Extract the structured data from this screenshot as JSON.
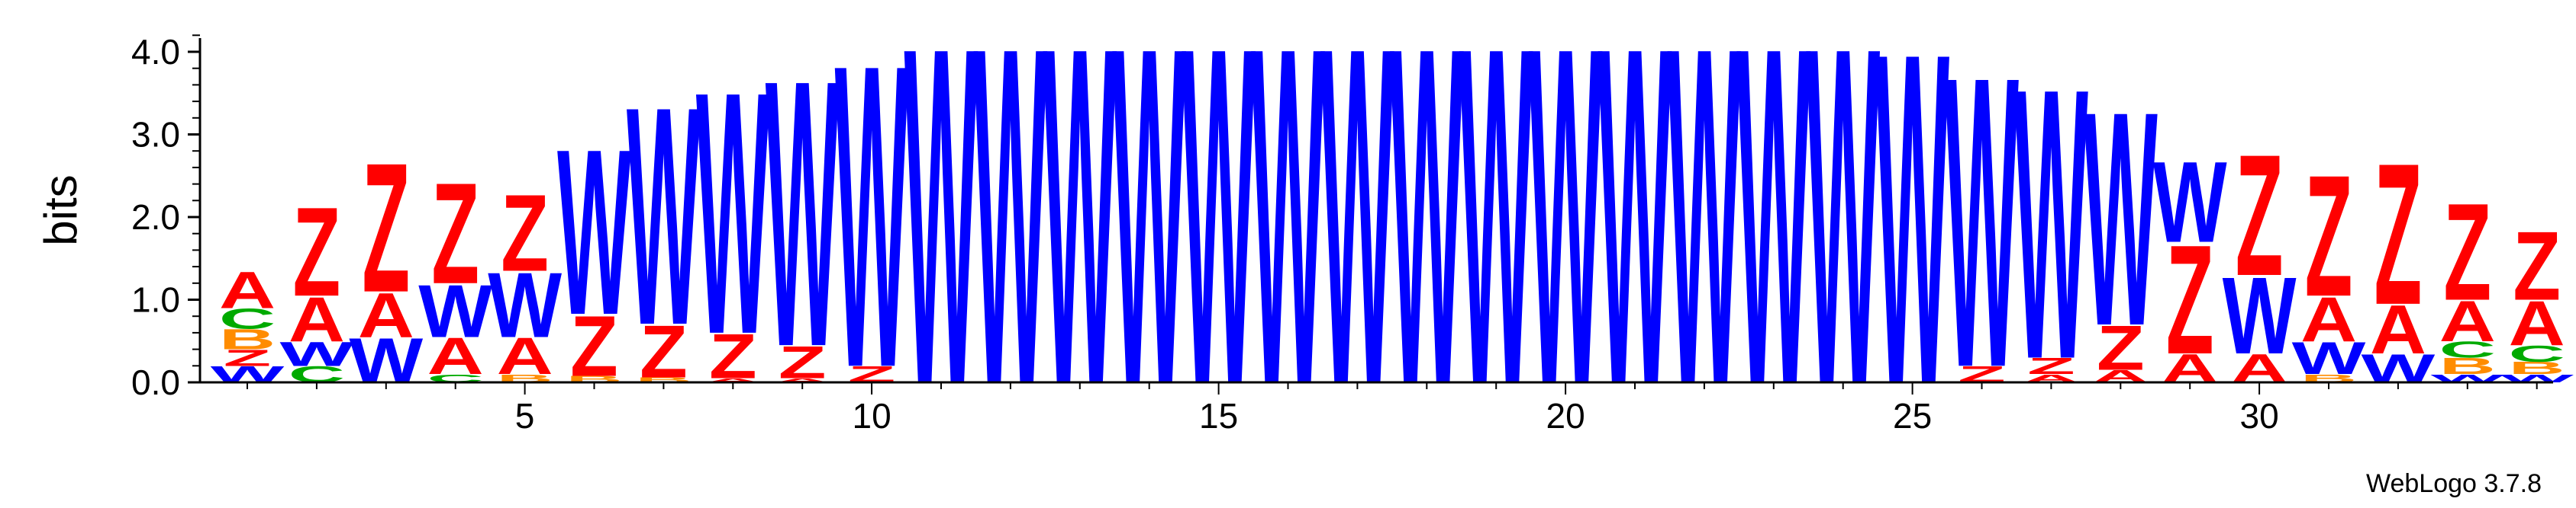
{
  "chart_data": {
    "type": "sequence-logo",
    "title": "",
    "ylabel": "bits",
    "xlabel": "",
    "ylim": [
      0,
      4.2
    ],
    "yticks": [
      "0.0",
      "1.0",
      "2.0",
      "3.0",
      "4.0"
    ],
    "xticks": [
      "5",
      "10",
      "15",
      "20",
      "25",
      "30"
    ],
    "xtick_positions": [
      5,
      10,
      15,
      20,
      25,
      30
    ],
    "num_positions": 34,
    "credit": "WebLogo 3.7.8",
    "colors": {
      "A": "#ff0000",
      "Z": "#ff0000",
      "W": "#0000ff",
      "C": "#00aa00",
      "B": "#ff8c00",
      "G": "#ff8c00",
      "T": "#cc00cc",
      "K": "#cc00cc"
    },
    "stacks": [
      [
        {
          "l": "W",
          "h": 0.2
        },
        {
          "l": "Z",
          "h": 0.2
        },
        {
          "l": "B",
          "h": 0.25
        },
        {
          "l": "C",
          "h": 0.25
        },
        {
          "l": "A",
          "h": 0.45
        }
      ],
      [
        {
          "l": "C",
          "h": 0.2
        },
        {
          "l": "W",
          "h": 0.3
        },
        {
          "l": "A",
          "h": 0.55
        },
        {
          "l": "Z",
          "h": 1.1
        }
      ],
      [
        {
          "l": "W",
          "h": 0.55
        },
        {
          "l": "A",
          "h": 0.55
        },
        {
          "l": "Z",
          "h": 1.6
        }
      ],
      [
        {
          "l": "C",
          "h": 0.1
        },
        {
          "l": "A",
          "h": 0.45
        },
        {
          "l": "W",
          "h": 0.65
        },
        {
          "l": "Z",
          "h": 1.25
        }
      ],
      [
        {
          "l": "B",
          "h": 0.1
        },
        {
          "l": "A",
          "h": 0.45
        },
        {
          "l": "W",
          "h": 0.8
        },
        {
          "l": "Z",
          "h": 0.95
        }
      ],
      [
        {
          "l": "B",
          "h": 0.08
        },
        {
          "l": "Z",
          "h": 0.75
        },
        {
          "l": "W",
          "h": 2.05
        }
      ],
      [
        {
          "l": "B",
          "h": 0.06
        },
        {
          "l": "Z",
          "h": 0.65
        },
        {
          "l": "W",
          "h": 2.7
        }
      ],
      [
        {
          "l": "A",
          "h": 0.05
        },
        {
          "l": "Z",
          "h": 0.55
        },
        {
          "l": "W",
          "h": 3.0
        }
      ],
      [
        {
          "l": "A",
          "h": 0.05
        },
        {
          "l": "Z",
          "h": 0.4
        },
        {
          "l": "W",
          "h": 3.3
        }
      ],
      [
        {
          "l": "Z",
          "h": 0.2
        },
        {
          "l": "W",
          "h": 3.75
        }
      ],
      [
        {
          "l": "W",
          "h": 4.17
        }
      ],
      [
        {
          "l": "W",
          "h": 4.17
        }
      ],
      [
        {
          "l": "W",
          "h": 4.17
        }
      ],
      [
        {
          "l": "W",
          "h": 4.17
        }
      ],
      [
        {
          "l": "W",
          "h": 4.17
        }
      ],
      [
        {
          "l": "W",
          "h": 4.17
        }
      ],
      [
        {
          "l": "W",
          "h": 4.17
        }
      ],
      [
        {
          "l": "W",
          "h": 4.17
        }
      ],
      [
        {
          "l": "W",
          "h": 4.17
        }
      ],
      [
        {
          "l": "W",
          "h": 4.17
        }
      ],
      [
        {
          "l": "W",
          "h": 4.17
        }
      ],
      [
        {
          "l": "W",
          "h": 4.17
        }
      ],
      [
        {
          "l": "W",
          "h": 4.17
        }
      ],
      [
        {
          "l": "W",
          "h": 4.17
        }
      ],
      [
        {
          "l": "W",
          "h": 4.1
        }
      ],
      [
        {
          "l": "Z",
          "h": 0.2
        },
        {
          "l": "W",
          "h": 3.6
        }
      ],
      [
        {
          "l": "A",
          "h": 0.1
        },
        {
          "l": "Z",
          "h": 0.2
        },
        {
          "l": "W",
          "h": 3.35
        }
      ],
      [
        {
          "l": "A",
          "h": 0.15
        },
        {
          "l": "Z",
          "h": 0.55
        },
        {
          "l": "W",
          "h": 2.65
        }
      ],
      [
        {
          "l": "A",
          "h": 0.35
        },
        {
          "l": "Z",
          "h": 1.35
        },
        {
          "l": "W",
          "h": 1.0
        }
      ],
      [
        {
          "l": "A",
          "h": 0.35
        },
        {
          "l": "W",
          "h": 0.95
        },
        {
          "l": "Z",
          "h": 1.5
        }
      ],
      [
        {
          "l": "B",
          "h": 0.1
        },
        {
          "l": "W",
          "h": 0.4
        },
        {
          "l": "A",
          "h": 0.55
        },
        {
          "l": "Z",
          "h": 1.5
        }
      ],
      [
        {
          "l": "W",
          "h": 0.35
        },
        {
          "l": "A",
          "h": 0.6
        },
        {
          "l": "Z",
          "h": 1.75
        }
      ],
      [
        {
          "l": "W",
          "h": 0.1
        },
        {
          "l": "B",
          "h": 0.2
        },
        {
          "l": "C",
          "h": 0.2
        },
        {
          "l": "A",
          "h": 0.5
        },
        {
          "l": "Z",
          "h": 1.2
        }
      ],
      [
        {
          "l": "W",
          "h": 0.1
        },
        {
          "l": "B",
          "h": 0.15
        },
        {
          "l": "C",
          "h": 0.2
        },
        {
          "l": "A",
          "h": 0.55
        },
        {
          "l": "Z",
          "h": 0.85
        }
      ]
    ]
  }
}
